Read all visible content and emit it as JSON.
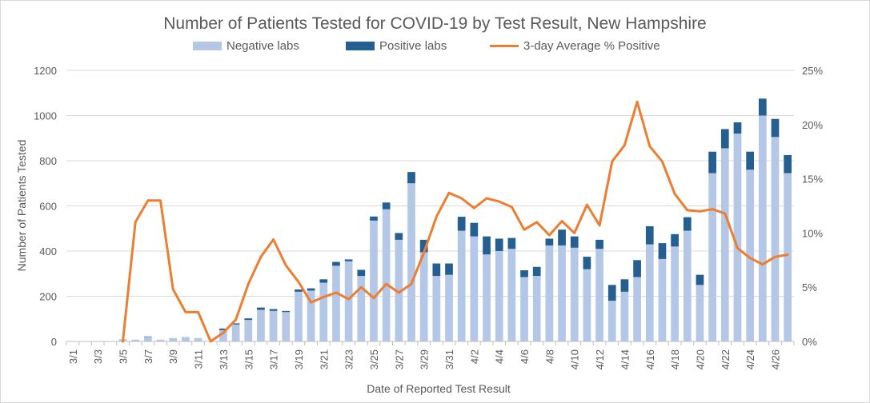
{
  "chart_data": {
    "type": "bar",
    "title": "Number of Patients Tested for COVID-19 by Test Result, New Hampshire",
    "xlabel": "Date of Reported Test Result",
    "ylabel": "Number  of Patients Tested",
    "ylim": [
      0,
      1200
    ],
    "y2lim": [
      0,
      25
    ],
    "yticks": [
      "0",
      "200",
      "400",
      "600",
      "800",
      "1000",
      "1200"
    ],
    "y2ticks": [
      "0%",
      "5%",
      "10%",
      "15%",
      "20%",
      "25%"
    ],
    "xtick_labels": [
      "3/1",
      "3/3",
      "3/5",
      "3/7",
      "3/9",
      "3/11",
      "3/13",
      "3/15",
      "3/17",
      "3/19",
      "3/21",
      "3/23",
      "3/25",
      "3/27",
      "3/29",
      "3/31",
      "4/2",
      "4/4",
      "4/6",
      "4/8",
      "4/10",
      "4/12",
      "4/14",
      "4/16",
      "4/18",
      "4/20",
      "4/22",
      "4/24",
      "4/26"
    ],
    "categories": [
      "3/1",
      "3/2",
      "3/3",
      "3/4",
      "3/5",
      "3/6",
      "3/7",
      "3/8",
      "3/9",
      "3/10",
      "3/11",
      "3/12",
      "3/13",
      "3/14",
      "3/15",
      "3/16",
      "3/17",
      "3/18",
      "3/19",
      "3/20",
      "3/21",
      "3/22",
      "3/23",
      "3/24",
      "3/25",
      "3/26",
      "3/27",
      "3/28",
      "3/29",
      "3/30",
      "3/31",
      "4/1",
      "4/2",
      "4/3",
      "4/4",
      "4/5",
      "4/6",
      "4/7",
      "4/8",
      "4/9",
      "4/10",
      "4/11",
      "4/12",
      "4/13",
      "4/14",
      "4/15",
      "4/16",
      "4/17",
      "4/18",
      "4/19",
      "4/20",
      "4/21",
      "4/22",
      "4/23",
      "4/24",
      "4/25",
      "4/26",
      "4/27"
    ],
    "grid": true,
    "legend_position": "top",
    "series": [
      {
        "name": "Negative labs",
        "type": "bar",
        "color": "#b4c7e7",
        "values": [
          0,
          0,
          0,
          0,
          10,
          8,
          20,
          8,
          15,
          20,
          15,
          0,
          50,
          75,
          95,
          140,
          135,
          130,
          220,
          225,
          260,
          335,
          355,
          290,
          535,
          585,
          450,
          700,
          395,
          290,
          295,
          490,
          465,
          385,
          400,
          410,
          285,
          290,
          425,
          425,
          415,
          320,
          410,
          180,
          220,
          285,
          430,
          365,
          420,
          490,
          250,
          745,
          855,
          920,
          760,
          1000,
          905,
          745
        ]
      },
      {
        "name": "Positive labs",
        "type": "bar",
        "color": "#255e91",
        "values": [
          0,
          0,
          0,
          0,
          0,
          0,
          2,
          0,
          0,
          0,
          0,
          0,
          7,
          5,
          7,
          10,
          8,
          5,
          10,
          10,
          15,
          17,
          8,
          27,
          18,
          30,
          30,
          50,
          55,
          55,
          50,
          62,
          60,
          80,
          55,
          48,
          30,
          40,
          30,
          70,
          50,
          55,
          40,
          70,
          55,
          75,
          80,
          70,
          55,
          60,
          45,
          95,
          85,
          50,
          80,
          75,
          80,
          80
        ]
      },
      {
        "name": "3-day Average % Positive",
        "type": "line",
        "axis": "secondary",
        "color": "#ed7d31",
        "values": [
          null,
          null,
          null,
          null,
          0,
          11,
          13,
          13,
          4.8,
          2.7,
          2.7,
          0,
          0.8,
          2,
          5.3,
          7.8,
          9.4,
          7,
          5.5,
          3.6,
          4.1,
          4.5,
          3.9,
          5,
          4,
          5.3,
          4.5,
          5.3,
          8.2,
          11.5,
          13.7,
          13.2,
          12.3,
          13.2,
          12.9,
          12.4,
          10.3,
          11,
          9.8,
          11.1,
          10,
          12.6,
          10.7,
          16.6,
          18.1,
          22.1,
          18,
          16.6,
          13.6,
          12.1,
          12,
          12.2,
          11.8,
          8.6,
          7.7,
          7.1,
          7.8,
          8
        ]
      }
    ]
  }
}
